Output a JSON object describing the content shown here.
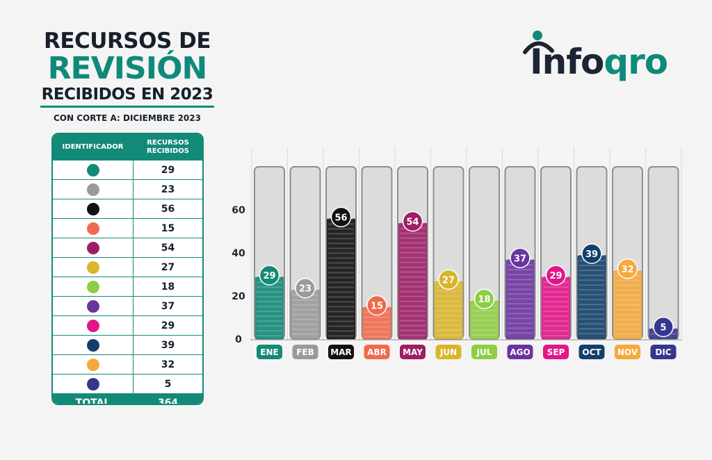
{
  "title": {
    "line1": "RECURSOS DE",
    "line2": "REVISIÓN",
    "line3": "RECIBIDOS EN 2023",
    "subtitle": "CON CORTE A: DICIEMBRE 2023"
  },
  "logo": {
    "part1": "Info",
    "part2": "qro"
  },
  "table": {
    "header_id": "IDENTIFICADOR",
    "header_count": "RECURSOS RECIBIDOS",
    "total_label": "TOTAL",
    "total_value": "364"
  },
  "chart_data": {
    "type": "bar",
    "categories": [
      "ENE",
      "FEB",
      "MAR",
      "ABR",
      "MAY",
      "JUN",
      "JUL",
      "AGO",
      "SEP",
      "OCT",
      "NOV",
      "DIC"
    ],
    "values": [
      29,
      23,
      56,
      15,
      54,
      27,
      18,
      37,
      29,
      39,
      32,
      5
    ],
    "colors": [
      "#138a78",
      "#9a9a9a",
      "#111111",
      "#ef6a4c",
      "#9c1f66",
      "#d9b52c",
      "#8fcd45",
      "#6a34a0",
      "#e2158a",
      "#13406a",
      "#f4a93c",
      "#36368e"
    ],
    "yticks": [
      0,
      20,
      40,
      60
    ],
    "ylim": [
      0,
      80
    ],
    "title": "",
    "xlabel": "",
    "ylabel": ""
  }
}
